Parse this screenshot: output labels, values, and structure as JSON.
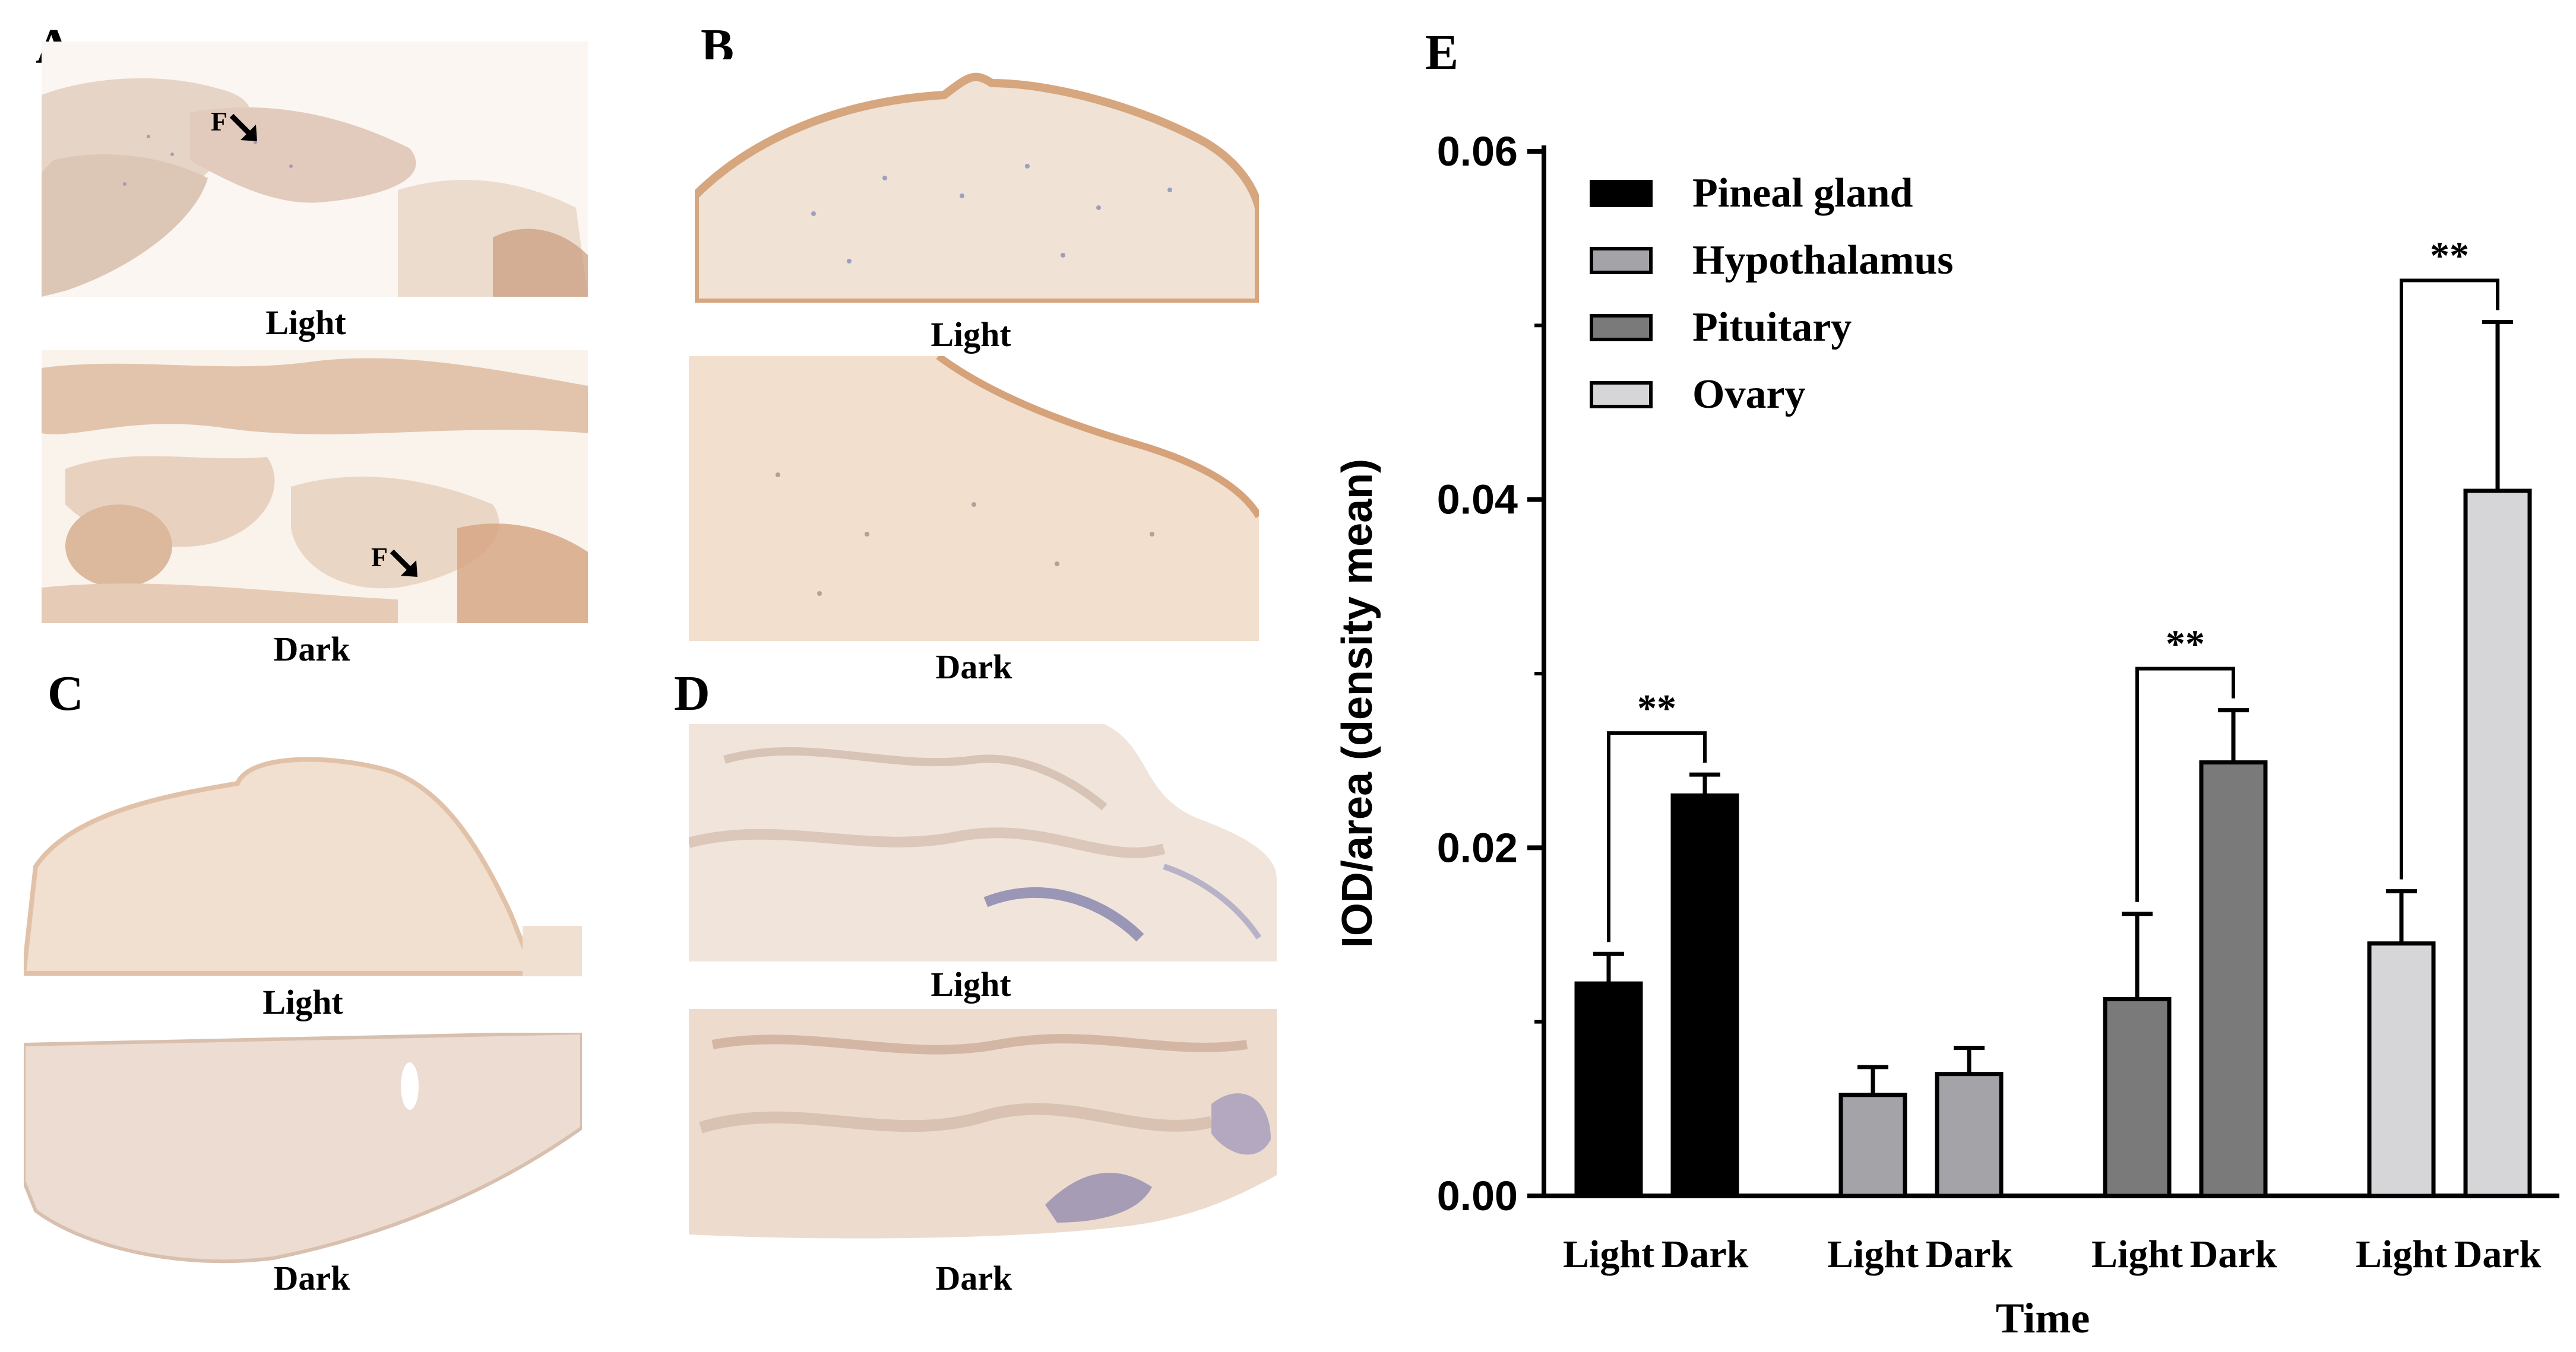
{
  "panels": {
    "A": {
      "letter": "A",
      "top_label": "Light",
      "bottom_label": "Dark",
      "arrow_top": "F",
      "arrow_bottom": "F"
    },
    "B": {
      "letter": "B",
      "top_label": "Light",
      "bottom_label": "Dark"
    },
    "C": {
      "letter": "C",
      "top_label": "Light",
      "bottom_label": "Dark"
    },
    "D": {
      "letter": "D",
      "top_label": "Light",
      "bottom_label": "Dark"
    },
    "E": {
      "letter": "E"
    }
  },
  "chart_data": {
    "type": "bar",
    "xlabel": "Time",
    "ylabel": "IOD/area (density mean)",
    "ylim": [
      0,
      0.06
    ],
    "yticks": [
      "0.00",
      "0.02",
      "0.04",
      "0.06"
    ],
    "ytick_values": [
      0,
      0.02,
      0.04,
      0.06
    ],
    "categories": [
      "Light",
      "Dark"
    ],
    "legend_position": "top-left",
    "series": [
      {
        "name": "Pineal gland",
        "color": "#000000",
        "values": [
          0.0122,
          0.023
        ],
        "errors": [
          0.0017,
          0.0012
        ],
        "significance": "**"
      },
      {
        "name": "Hypothalamus",
        "color": "#a3a3a8",
        "values": [
          0.0058,
          0.007
        ],
        "errors": [
          0.0016,
          0.0015
        ],
        "significance": ""
      },
      {
        "name": "Pituitary",
        "color": "#7a7a7a",
        "values": [
          0.0113,
          0.0249
        ],
        "errors": [
          0.0049,
          0.003
        ],
        "significance": "**"
      },
      {
        "name": "Ovary",
        "color": "#d6d6d8",
        "values": [
          0.0145,
          0.0405
        ],
        "errors": [
          0.003,
          0.0097
        ],
        "significance": "**"
      }
    ]
  }
}
